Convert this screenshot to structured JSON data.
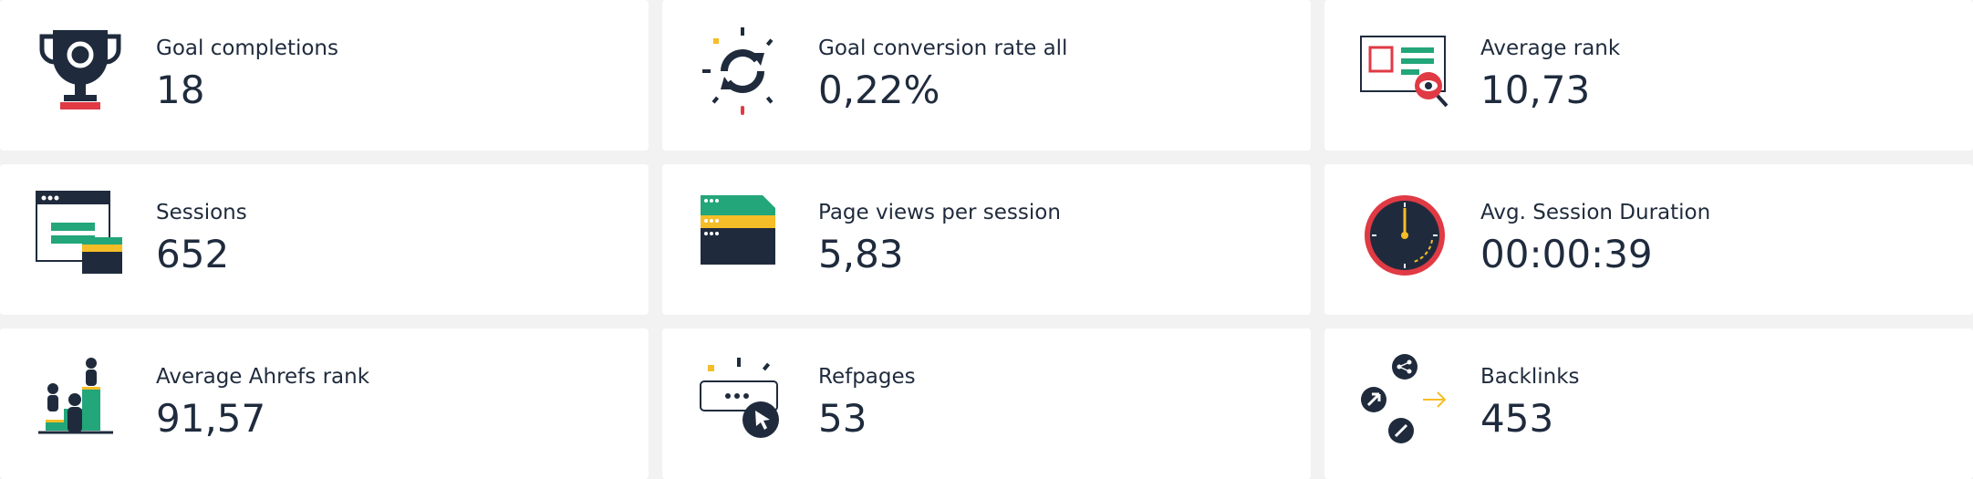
{
  "cards": [
    {
      "label": "Goal completions",
      "value": "18"
    },
    {
      "label": "Goal conversion rate all",
      "value": "0,22%"
    },
    {
      "label": "Average rank",
      "value": "10,73"
    },
    {
      "label": "Sessions",
      "value": "652"
    },
    {
      "label": "Page views per session",
      "value": "5,83"
    },
    {
      "label": "Avg. Session Duration",
      "value": "00:00:39"
    },
    {
      "label": "Average Ahrefs rank",
      "value": "91,57"
    },
    {
      "label": "Refpages",
      "value": "53"
    },
    {
      "label": "Backlinks",
      "value": "453"
    }
  ]
}
